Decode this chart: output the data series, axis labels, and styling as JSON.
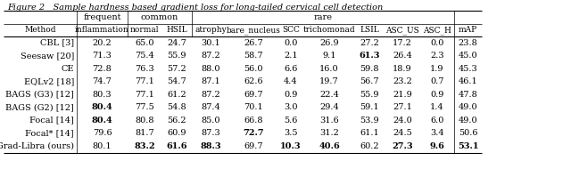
{
  "title": "Figure 2   Sample hardness based gradient loss for long-tailed cervical cell detection",
  "rows": [
    {
      "method": "CBL [3]",
      "values": [
        "20.2",
        "65.0",
        "24.7",
        "30.1",
        "26.7",
        "0.0",
        "26.9",
        "27.2",
        "17.2",
        "0.0",
        "23.8"
      ],
      "bold_cols": []
    },
    {
      "method": "Seesaw [20]",
      "values": [
        "71.3",
        "75.4",
        "55.9",
        "87.2",
        "58.7",
        "2.1",
        "9.1",
        "61.3",
        "26.4",
        "2.3",
        "45.0"
      ],
      "bold_cols": [
        7
      ]
    },
    {
      "method": "CE",
      "values": [
        "72.8",
        "76.3",
        "57.2",
        "88.0",
        "56.0",
        "6.6",
        "16.0",
        "59.8",
        "18.9",
        "1.9",
        "45.3"
      ],
      "bold_cols": []
    },
    {
      "method": "EQLv2 [18]",
      "values": [
        "74.7",
        "77.1",
        "54.7",
        "87.1",
        "62.6",
        "4.4",
        "19.7",
        "56.7",
        "23.2",
        "0.7",
        "46.1"
      ],
      "bold_cols": []
    },
    {
      "method": "BAGS (G3) [12]",
      "values": [
        "80.3",
        "77.1",
        "61.2",
        "87.2",
        "69.7",
        "0.9",
        "22.4",
        "55.9",
        "21.9",
        "0.9",
        "47.8"
      ],
      "bold_cols": []
    },
    {
      "method": "BAGS (G2) [12]",
      "values": [
        "80.4",
        "77.5",
        "54.8",
        "87.4",
        "70.1",
        "3.0",
        "29.4",
        "59.1",
        "27.1",
        "1.4",
        "49.0"
      ],
      "bold_cols": [
        0
      ]
    },
    {
      "method": "Focal [14]",
      "values": [
        "80.4",
        "80.8",
        "56.2",
        "85.0",
        "66.8",
        "5.6",
        "31.6",
        "53.9",
        "24.0",
        "6.0",
        "49.0"
      ],
      "bold_cols": [
        0
      ]
    },
    {
      "method": "Focal* [14]",
      "values": [
        "79.6",
        "81.7",
        "60.9",
        "87.3",
        "72.7",
        "3.5",
        "31.2",
        "61.1",
        "24.5",
        "3.4",
        "50.6"
      ],
      "bold_cols": [
        4
      ]
    },
    {
      "method": "Grad-Libra (ours)",
      "values": [
        "80.1",
        "83.2",
        "61.6",
        "88.3",
        "69.7",
        "10.3",
        "40.6",
        "60.2",
        "27.3",
        "9.6",
        "53.1"
      ],
      "bold_cols": [
        1,
        2,
        3,
        5,
        6,
        8,
        9,
        10
      ]
    }
  ],
  "col_labels_row2": [
    "inflammation",
    "normal",
    "HSIL",
    "atrophy",
    "bare_nucleus",
    "SCC",
    "trichomonad",
    "LSIL",
    "ASC_US",
    "ASC_H",
    "mAP"
  ],
  "group_spans": [
    {
      "label": "frequent",
      "start": 1,
      "end": 1
    },
    {
      "label": "common",
      "start": 2,
      "end": 3
    },
    {
      "label": "rare",
      "start": 4,
      "end": 10
    }
  ],
  "background_color": "#ffffff",
  "line_color": "#000000",
  "font_size": 7.0,
  "title_font_size": 7.0
}
